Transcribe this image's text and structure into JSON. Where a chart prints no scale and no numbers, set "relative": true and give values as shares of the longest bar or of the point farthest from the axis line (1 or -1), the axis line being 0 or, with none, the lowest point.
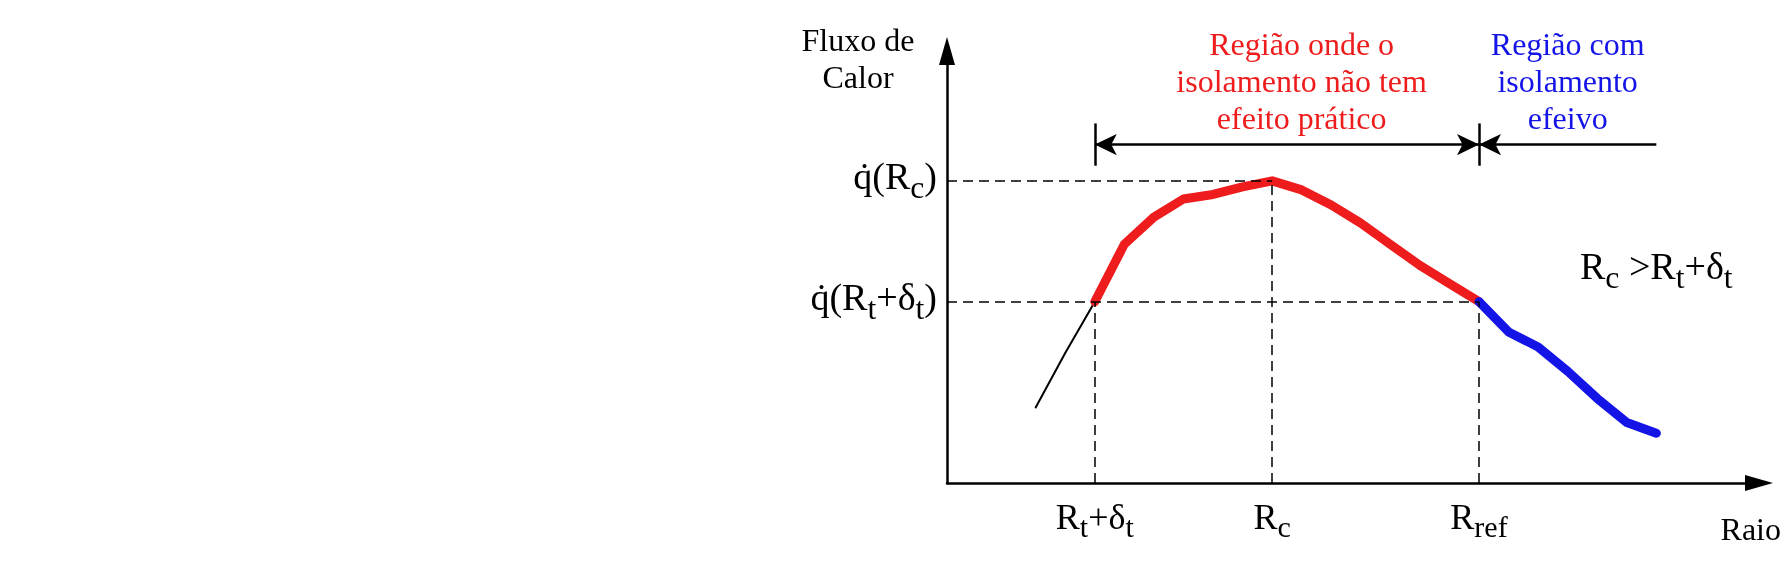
{
  "chart_data": {
    "type": "line",
    "relative": true,
    "xlabel": "Raio",
    "ylabel": "Fluxo de Calor",
    "marker": "none",
    "categories": [
      null,
      null,
      null,
      null,
      null,
      "R$_{t}$+δ$_{t}$",
      null,
      null,
      null,
      null,
      null,
      "R$_{c}$",
      null,
      null,
      null,
      null,
      null,
      null,
      "R$_{ref}$",
      null,
      null,
      null,
      null,
      null,
      null,
      null,
      null,
      null
    ],
    "series": [
      {
        "color": "#000000",
        "values": [
          null,
          null,
          null,
          0.25,
          0.43,
          0.6,
          null,
          null,
          null,
          null,
          null,
          null,
          null,
          null,
          null,
          null,
          null,
          null,
          null,
          null,
          null,
          null,
          null,
          null,
          null,
          null,
          null,
          null
        ]
      },
      {
        "color": "#ee1c1c",
        "values": [
          null,
          null,
          null,
          null,
          null,
          0.6,
          0.79,
          0.88,
          0.94,
          0.955,
          0.98,
          1,
          0.97,
          0.92,
          0.86,
          0.79,
          0.72,
          0.66,
          0.6,
          null,
          null,
          null,
          null,
          null,
          null,
          null,
          null,
          null
        ]
      },
      {
        "color": "#1414e6",
        "values": [
          null,
          null,
          null,
          null,
          null,
          null,
          null,
          null,
          null,
          null,
          null,
          null,
          null,
          null,
          null,
          null,
          null,
          null,
          0.6,
          0.5,
          0.45,
          0.37,
          0.28,
          0.2,
          0.165,
          null,
          null,
          null
        ]
      }
    ],
    "ref_lines": [
      {
        "axis": "y",
        "value": 1,
        "label": "q̇(R$_{c}$)",
        "line_style": "dashed"
      },
      {
        "axis": "y",
        "value": 0.6,
        "label": "q̇(R$_{t}$+δ$_{t}$)",
        "line_style": "dashed"
      },
      {
        "axis": "x",
        "value": "R$_{t}$+δ$_{t}$",
        "line_style": "dashed"
      },
      {
        "axis": "x",
        "value": "R$_{c}$",
        "line_style": "dashed"
      },
      {
        "axis": "x",
        "value": "R$_{ref}$",
        "line_style": "dashed"
      }
    ],
    "annotations": [
      "Região onde o isolamento não tem efeito prático",
      "Região com isolamento efeivo",
      "R$_{c}$ >R$_{t}$+δ$_{t}$"
    ]
  }
}
